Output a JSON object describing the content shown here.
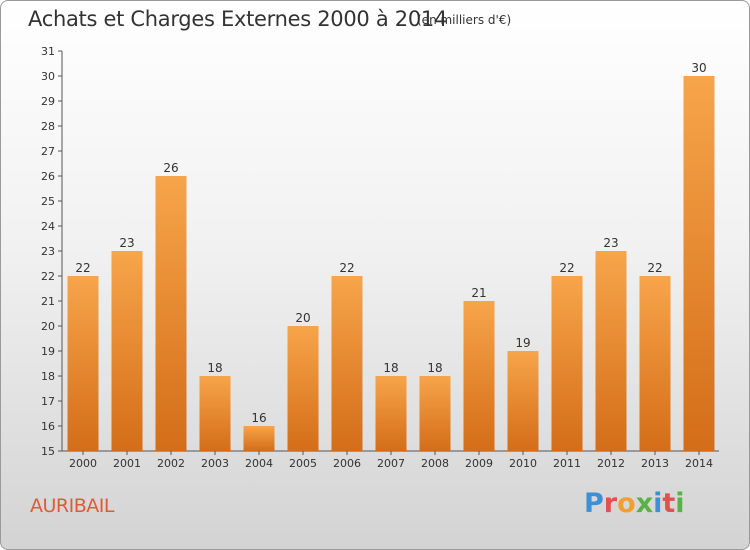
{
  "header": {
    "title": "Achats et Charges Externes 2000 à 2014",
    "subtitle": "(en milliers d'€)"
  },
  "footer": {
    "place": "AURIBAIL",
    "logo": "Proxiti"
  },
  "colors": {
    "bar_light": "#f7a54a",
    "bar_dark": "#d46d18",
    "place_text": "#e05a3a"
  },
  "chart_data": {
    "type": "bar",
    "title": "Achats et Charges Externes 2000 à 2014",
    "subtitle": "(en milliers d'€)",
    "xlabel": "",
    "ylabel": "",
    "categories": [
      "2000",
      "2001",
      "2002",
      "2003",
      "2004",
      "2005",
      "2006",
      "2007",
      "2008",
      "2009",
      "2010",
      "2011",
      "2012",
      "2013",
      "2014"
    ],
    "values": [
      22,
      23,
      26,
      18,
      16,
      20,
      22,
      18,
      18,
      21,
      19,
      22,
      23,
      22,
      30
    ],
    "ylim": [
      15,
      31
    ],
    "yticks": [
      15,
      16,
      17,
      18,
      19,
      20,
      21,
      22,
      23,
      24,
      25,
      26,
      27,
      28,
      29,
      30,
      31
    ],
    "grid": false,
    "data_labels": true
  }
}
